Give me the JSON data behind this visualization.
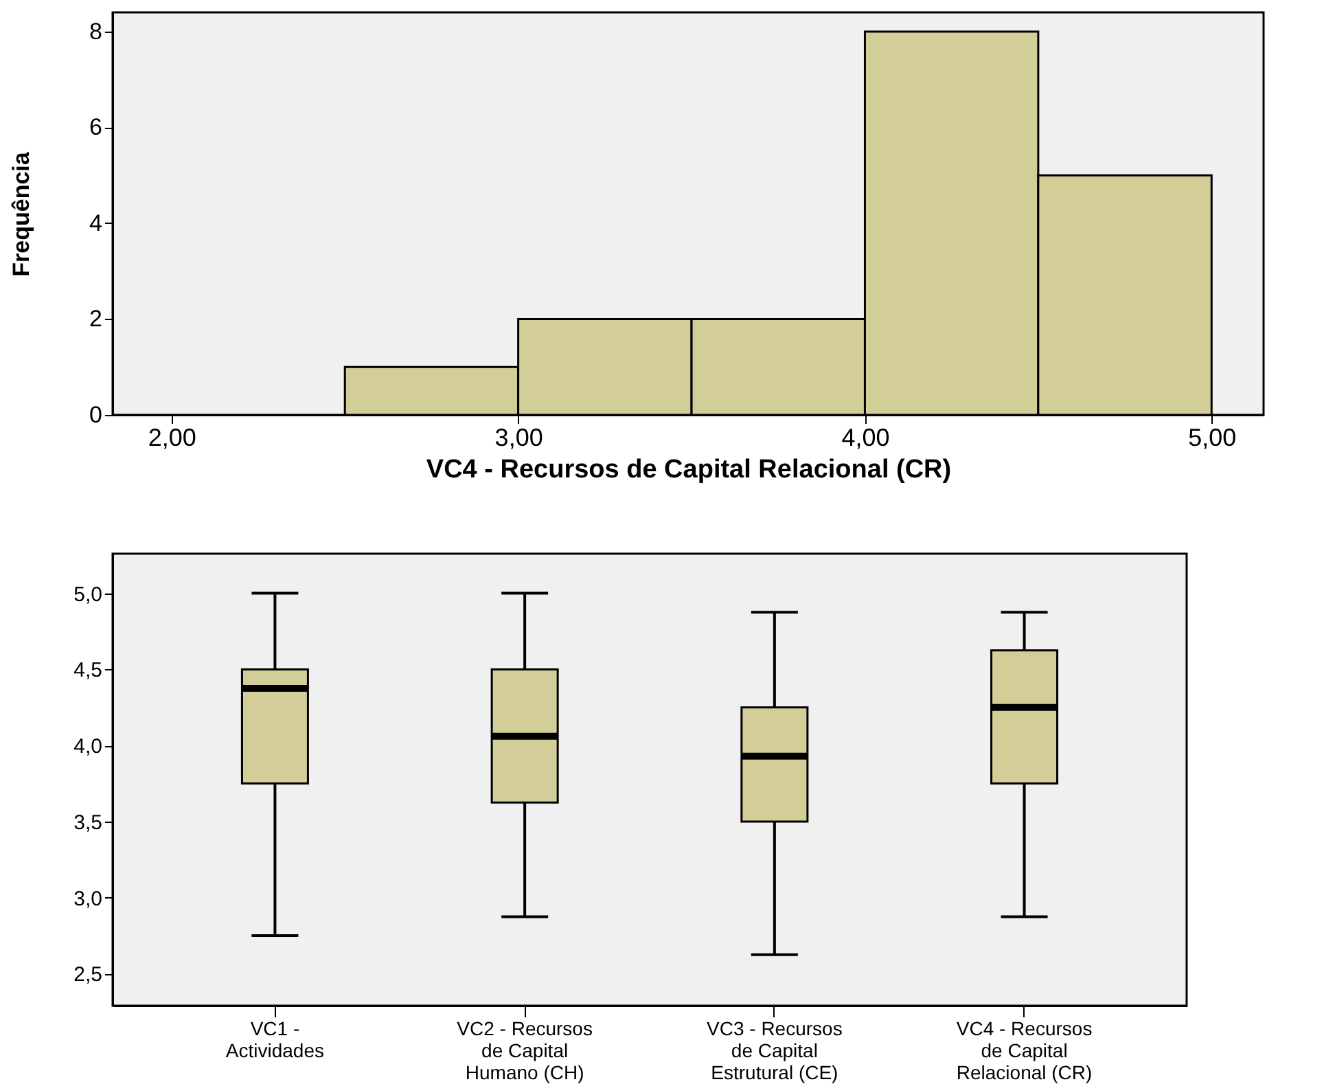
{
  "chart_data": [
    {
      "type": "histogram",
      "xlabel": "VC4 - Recursos de Capital Relacional (CR)",
      "ylabel": "Frequência",
      "bins": [
        2.5,
        3.0,
        3.5,
        4.0,
        4.5,
        5.0
      ],
      "values": [
        1,
        2,
        2,
        8,
        5
      ],
      "color": "#d3ce98",
      "xlim": [
        1.83,
        5.15
      ],
      "xticks": [
        {
          "value": 2,
          "label": "2,00"
        },
        {
          "value": 3,
          "label": "3,00"
        },
        {
          "value": 4,
          "label": "4,00"
        },
        {
          "value": 5,
          "label": "5,00"
        }
      ],
      "ylim": [
        0,
        8.4
      ],
      "yticks": [
        0,
        2,
        4,
        6,
        8
      ],
      "grid": false
    },
    {
      "type": "box",
      "categories": [
        "VC1 - Actividades",
        "VC2 - Recursos de Capital Humano (CH)",
        "VC3 - Recursos de Capital Estrutural (CE)",
        "VC4 - Recursos de Capital Relacional (CR)"
      ],
      "color": "#d3ce98",
      "boxes": [
        {
          "low": 2.75,
          "q1": 3.75,
          "median": 4.375,
          "q3": 4.5,
          "high": 5.0
        },
        {
          "low": 2.875,
          "q1": 3.625,
          "median": 4.06,
          "q3": 4.5,
          "high": 5.0
        },
        {
          "low": 2.625,
          "q1": 3.5,
          "median": 3.93,
          "q3": 4.25,
          "high": 4.875
        },
        {
          "low": 2.875,
          "q1": 3.75,
          "median": 4.25,
          "q3": 4.625,
          "high": 4.875
        }
      ],
      "ylim": [
        2.29,
        5.26
      ],
      "yticks": [
        {
          "value": 2.5,
          "label": "2,5"
        },
        {
          "value": 3.0,
          "label": "3,0"
        },
        {
          "value": 3.5,
          "label": "3,5"
        },
        {
          "value": 4.0,
          "label": "4,0"
        },
        {
          "value": 4.5,
          "label": "4,5"
        },
        {
          "value": 5.0,
          "label": "5,0"
        }
      ],
      "grid": false
    }
  ]
}
